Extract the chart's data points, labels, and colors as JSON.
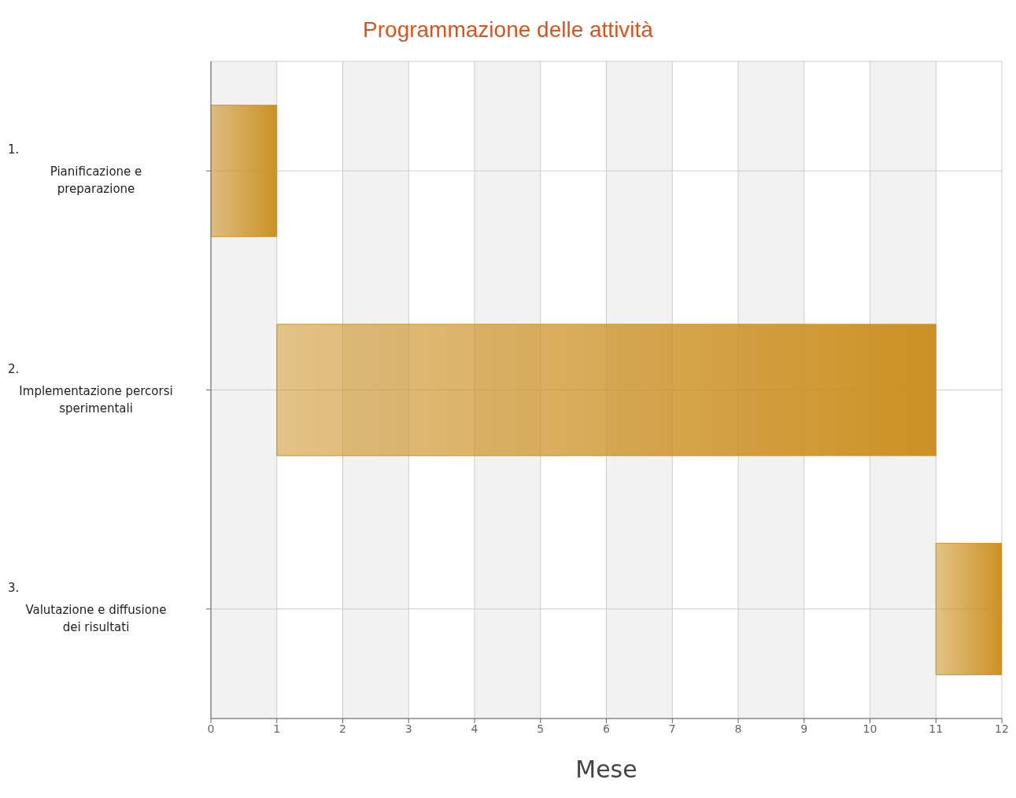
{
  "chart_data": {
    "type": "bar",
    "orientation": "horizontal",
    "title": "Programmazione delle attività",
    "xlabel": "Mese",
    "categories": [
      "1. Pianificazione e preparazione",
      "2. Implementazione percorsi sperimentali",
      "3. Valutazione e diffusione dei risultati"
    ],
    "base": [
      0,
      1,
      11
    ],
    "values": [
      1,
      10,
      1
    ],
    "color": "#cc9124",
    "xlim": [
      0,
      12
    ],
    "xticks": [
      0,
      1,
      2,
      3,
      4,
      5,
      6,
      7,
      8,
      9,
      10,
      11,
      12
    ],
    "grid": true,
    "legend": false
  }
}
